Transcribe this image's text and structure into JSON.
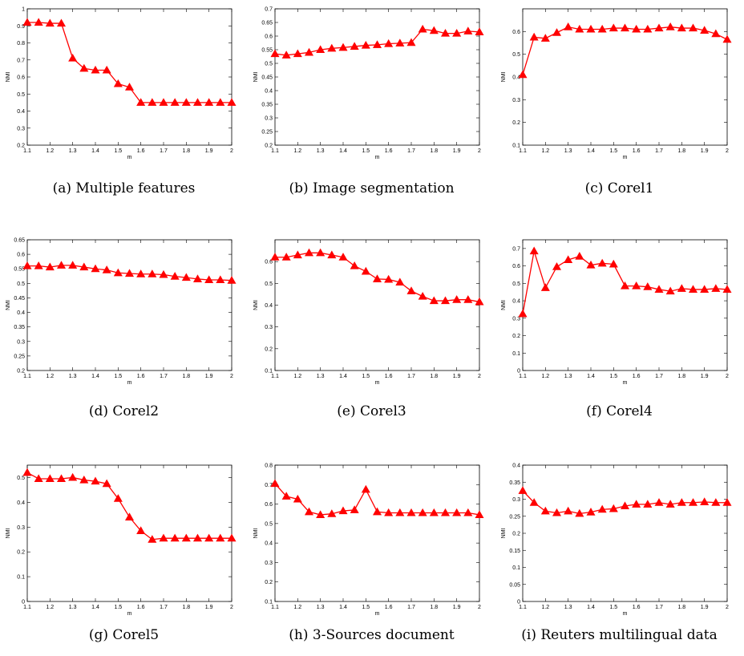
{
  "chart_data": [
    {
      "type": "line",
      "caption": "(a) Multiple features",
      "xlabel": "m",
      "ylabel": "NMI",
      "xlim": [
        1.1,
        2
      ],
      "ylim": [
        0.2,
        1
      ],
      "yticks": [
        "0.2",
        "0.3",
        "0.4",
        "0.5",
        "0.6",
        "0.7",
        "0.8",
        "0.9",
        "1"
      ],
      "xticks": [
        "1.1",
        "1.2",
        "1.3",
        "1.4",
        "1.5",
        "1.6",
        "1.7",
        "1.8",
        "1.9",
        "2"
      ],
      "x": [
        1.1,
        1.15,
        1.2,
        1.25,
        1.3,
        1.35,
        1.4,
        1.45,
        1.5,
        1.55,
        1.6,
        1.65,
        1.7,
        1.75,
        1.8,
        1.85,
        1.9,
        1.95,
        2
      ],
      "series": [
        {
          "values": [
            0.92,
            0.92,
            0.915,
            0.915,
            0.71,
            0.65,
            0.64,
            0.64,
            0.56,
            0.54,
            0.45,
            0.45,
            0.45,
            0.45,
            0.45,
            0.45,
            0.45,
            0.45,
            0.45
          ]
        }
      ]
    },
    {
      "type": "line",
      "caption": "(b) Image segmentation",
      "xlabel": "m",
      "ylabel": "NMI",
      "xlim": [
        1.1,
        2
      ],
      "ylim": [
        0.2,
        0.7
      ],
      "yticks": [
        "0.2",
        "0.25",
        "0.3",
        "0.35",
        "0.4",
        "0.45",
        "0.5",
        "0.55",
        "0.6",
        "0.65",
        "0.7"
      ],
      "xticks": [
        "1.1",
        "1.2",
        "1.3",
        "1.4",
        "1.5",
        "1.6",
        "1.7",
        "1.8",
        "1.9",
        "2"
      ],
      "x": [
        1.1,
        1.15,
        1.2,
        1.25,
        1.3,
        1.35,
        1.4,
        1.45,
        1.5,
        1.55,
        1.6,
        1.65,
        1.7,
        1.75,
        1.8,
        1.85,
        1.9,
        1.95,
        2
      ],
      "series": [
        {
          "values": [
            0.535,
            0.53,
            0.535,
            0.54,
            0.55,
            0.555,
            0.558,
            0.562,
            0.566,
            0.568,
            0.572,
            0.574,
            0.576,
            0.625,
            0.62,
            0.61,
            0.61,
            0.618,
            0.615
          ]
        }
      ]
    },
    {
      "type": "line",
      "caption": "(c) Corel1",
      "xlabel": "m",
      "ylabel": "NMI",
      "xlim": [
        1.1,
        2
      ],
      "ylim": [
        0.1,
        0.7
      ],
      "yticks": [
        "0.1",
        "0.2",
        "0.3",
        "0.4",
        "0.5",
        "0.6"
      ],
      "xticks": [
        "1.1",
        "1.2",
        "1.3",
        "1.4",
        "1.5",
        "1.6",
        "1.7",
        "1.8",
        "1.9",
        "2"
      ],
      "x": [
        1.1,
        1.15,
        1.2,
        1.25,
        1.3,
        1.35,
        1.4,
        1.45,
        1.5,
        1.55,
        1.6,
        1.65,
        1.7,
        1.75,
        1.8,
        1.85,
        1.9,
        1.95,
        2
      ],
      "series": [
        {
          "values": [
            0.41,
            0.575,
            0.57,
            0.595,
            0.62,
            0.61,
            0.61,
            0.61,
            0.615,
            0.615,
            0.61,
            0.61,
            0.615,
            0.62,
            0.615,
            0.615,
            0.605,
            0.59,
            0.565
          ]
        }
      ]
    },
    {
      "type": "line",
      "caption": "(d) Corel2",
      "xlabel": "m",
      "ylabel": "NMI",
      "xlim": [
        1.1,
        2
      ],
      "ylim": [
        0.2,
        0.65
      ],
      "yticks": [
        "0.2",
        "0.25",
        "0.3",
        "0.35",
        "0.4",
        "0.45",
        "0.5",
        "0.55",
        "0.6",
        "0.65"
      ],
      "xticks": [
        "1.1",
        "1.2",
        "1.3",
        "1.4",
        "1.5",
        "1.6",
        "1.7",
        "1.8",
        "1.9",
        "2"
      ],
      "x": [
        1.1,
        1.15,
        1.2,
        1.25,
        1.3,
        1.35,
        1.4,
        1.45,
        1.5,
        1.55,
        1.6,
        1.65,
        1.7,
        1.75,
        1.8,
        1.85,
        1.9,
        1.95,
        2
      ],
      "series": [
        {
          "values": [
            0.56,
            0.56,
            0.556,
            0.562,
            0.562,
            0.556,
            0.55,
            0.546,
            0.536,
            0.534,
            0.532,
            0.532,
            0.53,
            0.524,
            0.52,
            0.515,
            0.512,
            0.512,
            0.51
          ]
        }
      ]
    },
    {
      "type": "line",
      "caption": "(e) Corel3",
      "xlabel": "m",
      "ylabel": "NMI",
      "xlim": [
        1.1,
        2
      ],
      "ylim": [
        0.1,
        0.7
      ],
      "yticks": [
        "0.1",
        "0.2",
        "0.3",
        "0.4",
        "0.5",
        "0.6"
      ],
      "xticks": [
        "1.1",
        "1.2",
        "1.3",
        "1.4",
        "1.5",
        "1.6",
        "1.7",
        "1.8",
        "1.9",
        "2"
      ],
      "x": [
        1.1,
        1.15,
        1.2,
        1.25,
        1.3,
        1.35,
        1.4,
        1.45,
        1.5,
        1.55,
        1.6,
        1.65,
        1.7,
        1.75,
        1.8,
        1.85,
        1.9,
        1.95,
        2
      ],
      "series": [
        {
          "values": [
            0.62,
            0.62,
            0.63,
            0.64,
            0.64,
            0.63,
            0.62,
            0.58,
            0.555,
            0.52,
            0.518,
            0.505,
            0.465,
            0.44,
            0.42,
            0.42,
            0.425,
            0.425,
            0.415
          ]
        }
      ]
    },
    {
      "type": "line",
      "caption": "(f) Corel4",
      "xlabel": "m",
      "ylabel": "NMI",
      "xlim": [
        1.1,
        2
      ],
      "ylim": [
        0,
        0.75
      ],
      "yticks": [
        "0",
        "0.1",
        "0.2",
        "0.3",
        "0.4",
        "0.5",
        "0.6",
        "0.7"
      ],
      "xticks": [
        "1.1",
        "1.2",
        "1.3",
        "1.4",
        "1.5",
        "1.6",
        "1.7",
        "1.8",
        "1.9",
        "2"
      ],
      "x": [
        1.1,
        1.15,
        1.2,
        1.25,
        1.3,
        1.35,
        1.4,
        1.45,
        1.5,
        1.55,
        1.6,
        1.65,
        1.7,
        1.75,
        1.8,
        1.85,
        1.9,
        1.95,
        2
      ],
      "series": [
        {
          "values": [
            0.325,
            0.685,
            0.475,
            0.595,
            0.635,
            0.655,
            0.605,
            0.615,
            0.61,
            0.485,
            0.485,
            0.48,
            0.465,
            0.455,
            0.47,
            0.465,
            0.465,
            0.47,
            0.465
          ]
        }
      ]
    },
    {
      "type": "line",
      "caption": "(g) Corel5",
      "xlabel": "m",
      "ylabel": "NMI",
      "xlim": [
        1.1,
        2
      ],
      "ylim": [
        0,
        0.55
      ],
      "yticks": [
        "0",
        "0.1",
        "0.2",
        "0.3",
        "0.4",
        "0.5"
      ],
      "xticks": [
        "1.1",
        "1.2",
        "1.3",
        "1.4",
        "1.5",
        "1.6",
        "1.7",
        "1.8",
        "1.9",
        "2"
      ],
      "x": [
        1.1,
        1.15,
        1.2,
        1.25,
        1.3,
        1.35,
        1.4,
        1.45,
        1.5,
        1.55,
        1.6,
        1.65,
        1.7,
        1.75,
        1.8,
        1.85,
        1.9,
        1.95,
        2
      ],
      "series": [
        {
          "values": [
            0.52,
            0.495,
            0.495,
            0.495,
            0.5,
            0.49,
            0.485,
            0.475,
            0.415,
            0.34,
            0.285,
            0.25,
            0.255,
            0.255,
            0.255,
            0.255,
            0.255,
            0.255,
            0.255
          ]
        }
      ]
    },
    {
      "type": "line",
      "caption": "(h) 3-Sources document",
      "xlabel": "m",
      "ylabel": "NMI",
      "xlim": [
        1.1,
        2
      ],
      "ylim": [
        0.1,
        0.8
      ],
      "yticks": [
        "0.1",
        "0.2",
        "0.3",
        "0.4",
        "0.5",
        "0.6",
        "0.7",
        "0.8"
      ],
      "xticks": [
        "1.1",
        "1.2",
        "1.3",
        "1.4",
        "1.5",
        "1.6",
        "1.7",
        "1.8",
        "1.9",
        "2"
      ],
      "x": [
        1.1,
        1.15,
        1.2,
        1.25,
        1.3,
        1.35,
        1.4,
        1.45,
        1.5,
        1.55,
        1.6,
        1.65,
        1.7,
        1.75,
        1.8,
        1.85,
        1.9,
        1.95,
        2
      ],
      "series": [
        {
          "values": [
            0.705,
            0.64,
            0.625,
            0.56,
            0.545,
            0.55,
            0.565,
            0.57,
            0.675,
            0.56,
            0.555,
            0.555,
            0.555,
            0.555,
            0.555,
            0.555,
            0.555,
            0.555,
            0.545
          ]
        }
      ]
    },
    {
      "type": "line",
      "caption": "(i) Reuters multilingual data",
      "xlabel": "m",
      "ylabel": "NMI",
      "xlim": [
        1.1,
        2
      ],
      "ylim": [
        0,
        0.4
      ],
      "yticks": [
        "0",
        "0.05",
        "0.1",
        "0.15",
        "0.2",
        "0.25",
        "0.3",
        "0.35",
        "0.4"
      ],
      "xticks": [
        "1.1",
        "1.2",
        "1.3",
        "1.4",
        "1.5",
        "1.6",
        "1.7",
        "1.8",
        "1.9",
        "2"
      ],
      "x": [
        1.1,
        1.15,
        1.2,
        1.25,
        1.3,
        1.35,
        1.4,
        1.45,
        1.5,
        1.55,
        1.6,
        1.65,
        1.7,
        1.75,
        1.8,
        1.85,
        1.9,
        1.95,
        2
      ],
      "series": [
        {
          "values": [
            0.325,
            0.29,
            0.265,
            0.26,
            0.265,
            0.258,
            0.262,
            0.27,
            0.272,
            0.28,
            0.285,
            0.285,
            0.29,
            0.285,
            0.29,
            0.29,
            0.292,
            0.29,
            0.29
          ]
        }
      ]
    }
  ],
  "style": {
    "line_color": "#ff0000",
    "marker": "triangle",
    "axis_color": "#000000"
  }
}
